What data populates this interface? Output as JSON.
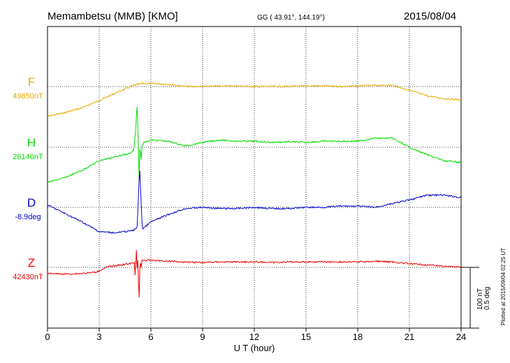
{
  "header": {
    "station": "Memambetsu (MMB)  [KMO]",
    "coords": "GG ( 43.91°, 144.19°)",
    "date": "2015/08/04"
  },
  "footer": {
    "plotted": "Plotted at 2015/09/04 02:25 UT",
    "scale_nt": "100 nT",
    "scale_deg": "0.5 deg"
  },
  "chart_data": {
    "type": "line",
    "title": "Memambetsu (MMB)  [KMO]",
    "xlabel": "U T (hour)",
    "ylabel": "",
    "xlim": [
      0,
      24
    ],
    "xticks": [
      "0",
      "3",
      "6",
      "9",
      "12",
      "15",
      "18",
      "21",
      "24"
    ],
    "grid": true,
    "scale": {
      "nT_per_tick": 100,
      "deg_per_tick": 0.5
    },
    "series": [
      {
        "name": "F",
        "baseline_label": "49850nT",
        "color": "#e8a800",
        "units_per_tick": 100,
        "x": [
          0,
          1,
          2,
          3,
          4,
          5,
          5.5,
          6,
          7,
          8,
          9,
          10,
          11,
          12,
          13,
          14,
          15,
          16,
          17,
          18,
          19,
          20,
          21,
          22,
          23,
          24
        ],
        "y": [
          -49,
          -43,
          -35,
          -23,
          -10,
          2,
          5,
          5,
          4,
          0,
          0,
          1,
          1,
          0,
          0,
          0,
          1,
          1,
          0,
          1,
          2,
          2,
          -6,
          -15,
          -20,
          -22
        ]
      },
      {
        "name": "H",
        "baseline_label": "26140nT",
        "color": "#00dd00",
        "units_per_tick": 100,
        "x": [
          0,
          1,
          2,
          3,
          4,
          4.8,
          5,
          5.2,
          5.3,
          5.4,
          5.6,
          6,
          7,
          8,
          9,
          10,
          11,
          12,
          13,
          14,
          15,
          16,
          17,
          18,
          19,
          20,
          21,
          22,
          23,
          24
        ],
        "y": [
          -58,
          -50,
          -38,
          -22,
          -15,
          -10,
          -5,
          55,
          -42,
          0,
          8,
          12,
          10,
          2,
          8,
          12,
          10,
          10,
          8,
          9,
          8,
          10,
          10,
          10,
          15,
          15,
          0,
          -12,
          -22,
          -25
        ]
      },
      {
        "name": "D",
        "baseline_label": "-8.9deg",
        "color": "#0000cc",
        "units_per_tick": 0.5,
        "x": [
          0,
          1,
          2,
          3,
          4,
          5,
          5.2,
          5.35,
          5.5,
          6,
          7,
          8,
          9,
          10,
          11,
          12,
          13,
          14,
          15,
          16,
          17,
          18,
          19,
          20,
          21,
          22,
          23,
          24
        ],
        "y": [
          0.02,
          -0.05,
          -0.12,
          -0.2,
          -0.21,
          -0.19,
          -0.16,
          0.33,
          -0.18,
          -0.12,
          -0.06,
          -0.01,
          0.0,
          -0.01,
          -0.01,
          0.0,
          -0.01,
          -0.01,
          0.0,
          0.0,
          0.01,
          0.01,
          0.0,
          0.03,
          0.06,
          0.1,
          0.1,
          0.08
        ]
      },
      {
        "name": "Z",
        "baseline_label": "42430nT",
        "color": "#ee0000",
        "units_per_tick": 100,
        "x": [
          0,
          1,
          2,
          2.8,
          3.5,
          4.5,
          5,
          5.2,
          5.3,
          5.4,
          5.6,
          6,
          7,
          8,
          9,
          10,
          11,
          12,
          13,
          14,
          15,
          16,
          17,
          18,
          19,
          20,
          21,
          22,
          23,
          24
        ],
        "y": [
          -10,
          -11,
          -10,
          -8,
          1,
          5,
          7,
          12,
          -38,
          14,
          11,
          12,
          10,
          9,
          8,
          9,
          9,
          9,
          8,
          9,
          9,
          9,
          9,
          9,
          10,
          9,
          6,
          4,
          2,
          0
        ]
      }
    ]
  }
}
